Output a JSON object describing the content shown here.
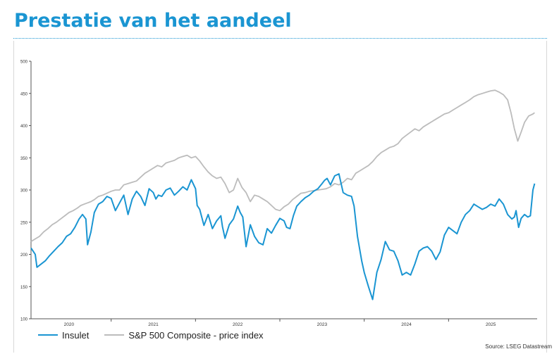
{
  "page": {
    "title": "Prestatie van het aandeel",
    "source": "Source: LSEG Datastream"
  },
  "colors": {
    "title": "#1a95d2",
    "insulet": "#1a95d2",
    "sp500": "#bcbcbc"
  },
  "chart_data": {
    "type": "line",
    "title": "",
    "xlabel": "",
    "ylabel": "",
    "ylim": [
      100,
      500
    ],
    "yticks": [
      100,
      150,
      200,
      250,
      300,
      350,
      400,
      450,
      500
    ],
    "xlim": [
      2019.55,
      2025.55
    ],
    "xticks": [
      {
        "value": 2020.0,
        "label": "2020"
      },
      {
        "value": 2021.0,
        "label": "2021"
      },
      {
        "value": 2022.0,
        "label": "2022"
      },
      {
        "value": 2023.0,
        "label": "2023"
      },
      {
        "value": 2024.0,
        "label": "2024"
      },
      {
        "value": 2025.0,
        "label": "2025"
      }
    ],
    "grid": false,
    "legend_position": "bottom-left",
    "series": [
      {
        "name": "Insulet",
        "x": [
          2019.55,
          2019.6,
          2019.62,
          2019.67,
          2019.72,
          2019.77,
          2019.82,
          2019.87,
          2019.92,
          2019.97,
          2020.02,
          2020.07,
          2020.12,
          2020.16,
          2020.2,
          2020.22,
          2020.26,
          2020.3,
          2020.35,
          2020.4,
          2020.45,
          2020.5,
          2020.55,
          2020.6,
          2020.65,
          2020.7,
          2020.75,
          2020.8,
          2020.85,
          2020.9,
          2020.95,
          2021.0,
          2021.03,
          2021.06,
          2021.1,
          2021.15,
          2021.2,
          2021.25,
          2021.3,
          2021.35,
          2021.4,
          2021.45,
          2021.5,
          2021.52,
          2021.55,
          2021.6,
          2021.65,
          2021.7,
          2021.75,
          2021.8,
          2021.82,
          2021.85,
          2021.9,
          2021.95,
          2022.0,
          2022.03,
          2022.06,
          2022.1,
          2022.15,
          2022.2,
          2022.25,
          2022.3,
          2022.35,
          2022.4,
          2022.45,
          2022.5,
          2022.55,
          2022.58,
          2022.62,
          2022.66,
          2022.7,
          2022.75,
          2022.8,
          2022.85,
          2022.9,
          2022.95,
          2023.0,
          2023.03,
          2023.06,
          2023.1,
          2023.15,
          2023.2,
          2023.25,
          2023.3,
          2023.35,
          2023.38,
          2023.42,
          2023.47,
          2023.5,
          2023.55,
          2023.6,
          2023.65,
          2023.7,
          2023.75,
          2023.8,
          2023.85,
          2023.9,
          2023.95,
          2024.0,
          2024.05,
          2024.1,
          2024.15,
          2024.2,
          2024.25,
          2024.3,
          2024.35,
          2024.4,
          2024.45,
          2024.5,
          2024.55,
          2024.6,
          2024.65,
          2024.7,
          2024.75,
          2024.8,
          2024.85,
          2024.9,
          2024.95,
          2025.0,
          2025.05,
          2025.1,
          2025.15,
          2025.2,
          2025.25,
          2025.28,
          2025.3,
          2025.33,
          2025.36,
          2025.4,
          2025.44,
          2025.47,
          2025.5,
          2025.52
        ],
        "values": [
          210,
          200,
          180,
          185,
          190,
          198,
          205,
          212,
          218,
          228,
          232,
          242,
          255,
          262,
          255,
          215,
          235,
          265,
          278,
          282,
          290,
          287,
          268,
          280,
          292,
          262,
          286,
          298,
          290,
          276,
          302,
          296,
          286,
          292,
          290,
          300,
          303,
          292,
          298,
          305,
          300,
          316,
          302,
          276,
          270,
          245,
          262,
          240,
          252,
          260,
          243,
          225,
          246,
          255,
          275,
          265,
          258,
          212,
          246,
          228,
          218,
          215,
          240,
          233,
          245,
          256,
          252,
          242,
          240,
          260,
          275,
          282,
          288,
          292,
          298,
          302,
          310,
          315,
          318,
          308,
          322,
          325,
          296,
          292,
          290,
          275,
          228,
          190,
          172,
          150,
          130,
          172,
          192,
          220,
          207,
          205,
          190,
          168,
          172,
          168,
          185,
          205,
          210,
          212,
          205,
          192,
          204,
          230,
          242,
          237,
          232,
          250,
          262,
          268,
          278,
          274,
          270,
          273,
          278,
          275,
          286,
          278,
          262,
          255,
          258,
          268,
          242,
          256,
          262,
          258,
          260,
          300,
          310
        ]
      },
      {
        "name": "S&P 500 Composite - price index",
        "x": [
          2019.55,
          2019.6,
          2019.65,
          2019.7,
          2019.75,
          2019.8,
          2019.85,
          2019.9,
          2019.95,
          2020.0,
          2020.05,
          2020.1,
          2020.14,
          2020.18,
          2020.22,
          2020.26,
          2020.3,
          2020.35,
          2020.4,
          2020.45,
          2020.5,
          2020.55,
          2020.6,
          2020.65,
          2020.7,
          2020.75,
          2020.8,
          2020.85,
          2020.9,
          2020.95,
          2021.0,
          2021.05,
          2021.1,
          2021.15,
          2021.2,
          2021.25,
          2021.3,
          2021.35,
          2021.4,
          2021.45,
          2021.5,
          2021.55,
          2021.6,
          2021.65,
          2021.7,
          2021.75,
          2021.8,
          2021.85,
          2021.9,
          2021.95,
          2022.0,
          2022.05,
          2022.1,
          2022.15,
          2022.2,
          2022.25,
          2022.3,
          2022.35,
          2022.4,
          2022.45,
          2022.5,
          2022.55,
          2022.6,
          2022.65,
          2022.7,
          2022.75,
          2022.8,
          2022.85,
          2022.9,
          2022.95,
          2023.0,
          2023.05,
          2023.1,
          2023.15,
          2023.2,
          2023.25,
          2023.3,
          2023.35,
          2023.4,
          2023.45,
          2023.5,
          2023.55,
          2023.6,
          2023.65,
          2023.7,
          2023.75,
          2023.8,
          2023.85,
          2023.9,
          2023.95,
          2024.0,
          2024.05,
          2024.1,
          2024.15,
          2024.2,
          2024.25,
          2024.3,
          2024.35,
          2024.4,
          2024.45,
          2024.5,
          2024.55,
          2024.6,
          2024.65,
          2024.7,
          2024.75,
          2024.8,
          2024.85,
          2024.9,
          2024.95,
          2025.0,
          2025.05,
          2025.1,
          2025.15,
          2025.2,
          2025.24,
          2025.28,
          2025.32,
          2025.36,
          2025.4,
          2025.45,
          2025.5,
          2025.52
        ],
        "values": [
          220,
          224,
          228,
          235,
          240,
          246,
          250,
          255,
          260,
          265,
          268,
          272,
          276,
          278,
          280,
          282,
          285,
          290,
          292,
          295,
          298,
          300,
          300,
          308,
          310,
          312,
          314,
          320,
          326,
          330,
          334,
          338,
          336,
          342,
          344,
          346,
          350,
          352,
          354,
          350,
          352,
          345,
          336,
          328,
          322,
          318,
          320,
          310,
          296,
          300,
          318,
          304,
          296,
          282,
          292,
          290,
          286,
          282,
          276,
          270,
          268,
          274,
          278,
          285,
          290,
          295,
          296,
          298,
          299,
          300,
          301,
          302,
          305,
          310,
          308,
          312,
          318,
          316,
          326,
          330,
          334,
          338,
          344,
          352,
          358,
          362,
          366,
          368,
          372,
          380,
          385,
          390,
          395,
          392,
          398,
          402,
          406,
          410,
          414,
          418,
          420,
          424,
          428,
          432,
          436,
          440,
          445,
          448,
          450,
          452,
          454,
          455,
          452,
          448,
          440,
          420,
          395,
          376,
          390,
          405,
          415,
          418,
          420
        ]
      }
    ]
  }
}
